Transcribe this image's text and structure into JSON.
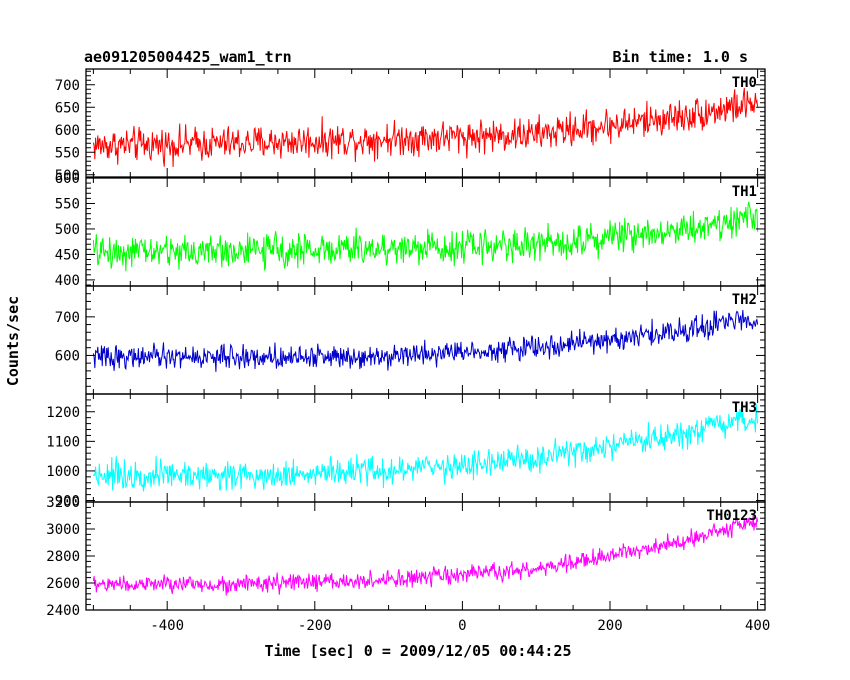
{
  "chart_data": {
    "type": "line",
    "title": "ae091205004425_wam1_trn",
    "subtitle": "Bin time: 1.0 s",
    "xlabel": "Time [sec] 0 = 2009/12/05 00:44:25",
    "ylabel": "Counts/sec",
    "xlim": [
      -510,
      410
    ],
    "x_ticks": [
      -400,
      -200,
      0,
      200,
      400
    ],
    "x_range": [
      -500,
      400
    ],
    "x_step": 1,
    "grid": false,
    "panels": [
      {
        "label": "TH0",
        "color": "#ff0000",
        "ylim": [
          495,
          735
        ],
        "y_ticks": [
          500,
          550,
          600,
          650,
          700
        ],
        "trend": [
          [
            -500,
            565
          ],
          [
            -300,
            570
          ],
          [
            -100,
            580
          ],
          [
            100,
            590
          ],
          [
            200,
            610
          ],
          [
            300,
            630
          ],
          [
            400,
            660
          ]
        ],
        "noise": 35
      },
      {
        "label": "TH1",
        "color": "#00ff00",
        "ylim": [
          388,
          600
        ],
        "y_ticks": [
          400,
          450,
          500,
          550,
          600
        ],
        "trend": [
          [
            -500,
            455
          ],
          [
            -300,
            457
          ],
          [
            -100,
            462
          ],
          [
            100,
            470
          ],
          [
            200,
            485
          ],
          [
            300,
            500
          ],
          [
            400,
            525
          ]
        ],
        "noise": 30
      },
      {
        "label": "TH2",
        "color": "#0000cc",
        "ylim": [
          500,
          780
        ],
        "y_ticks": [
          600,
          700
        ],
        "trend": [
          [
            -500,
            597
          ],
          [
            -300,
            595
          ],
          [
            -100,
            600
          ],
          [
            100,
            620
          ],
          [
            200,
            640
          ],
          [
            300,
            665
          ],
          [
            400,
            700
          ]
        ],
        "noise": 28
      },
      {
        "label": "TH3",
        "color": "#00ffff",
        "ylim": [
          895,
          1260
        ],
        "y_ticks": [
          900,
          1000,
          1100,
          1200
        ],
        "trend": [
          [
            -500,
            990
          ],
          [
            -300,
            985
          ],
          [
            -100,
            1000
          ],
          [
            100,
            1040
          ],
          [
            200,
            1080
          ],
          [
            300,
            1120
          ],
          [
            400,
            1180
          ]
        ],
        "noise": 45
      },
      {
        "label": "TH0123",
        "color": "#ff00ff",
        "ylim": [
          2400,
          3200
        ],
        "y_ticks": [
          2400,
          2600,
          2800,
          3000,
          3200
        ],
        "trend": [
          [
            -500,
            2590
          ],
          [
            -300,
            2590
          ],
          [
            -100,
            2620
          ],
          [
            100,
            2700
          ],
          [
            200,
            2800
          ],
          [
            300,
            2920
          ],
          [
            400,
            3060
          ]
        ],
        "noise": 60
      }
    ]
  }
}
